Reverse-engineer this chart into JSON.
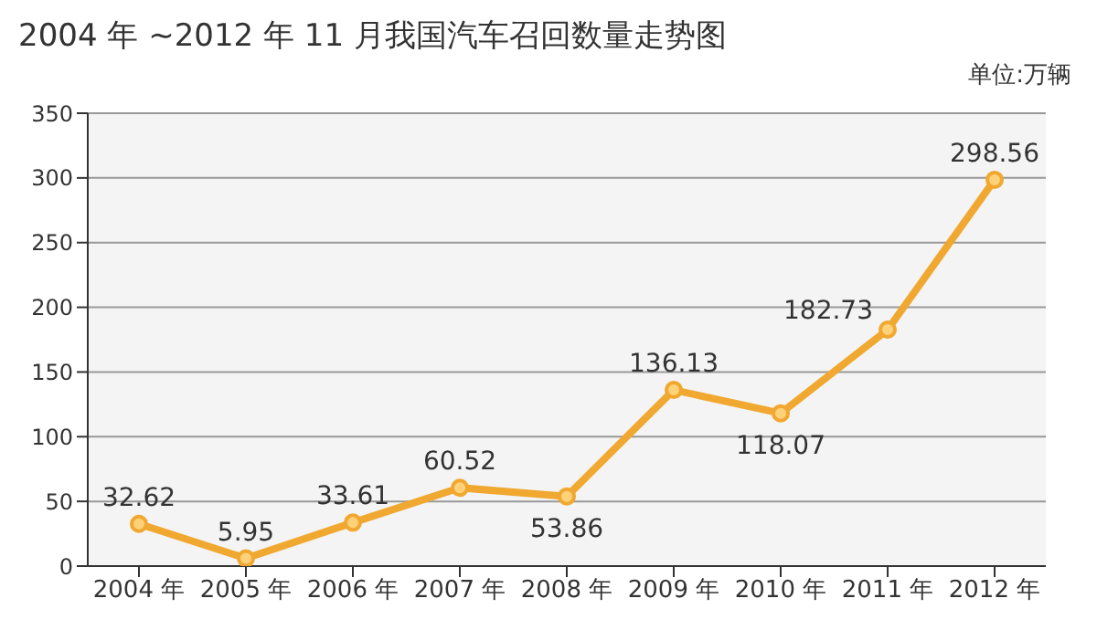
{
  "chart_data": {
    "type": "line",
    "title": "2004 年 ~2012 年 11 月我国汽车召回数量走势图",
    "annotations": [
      "单位:万辆"
    ],
    "categories": [
      "2004 年",
      "2005 年",
      "2006 年",
      "2007 年",
      "2008 年",
      "2009 年",
      "2010 年",
      "2011 年",
      "2012 年"
    ],
    "series": [
      {
        "color": "#f0a830",
        "values": [
          32.62,
          5.95,
          33.61,
          60.52,
          53.86,
          136.13,
          118.07,
          182.73,
          298.56
        ]
      }
    ],
    "ylim": [
      0,
      350
    ],
    "yticks": [
      0,
      50,
      100,
      150,
      200,
      250,
      300,
      350
    ],
    "grid": "y",
    "marker": "circle",
    "data_labels": true
  }
}
